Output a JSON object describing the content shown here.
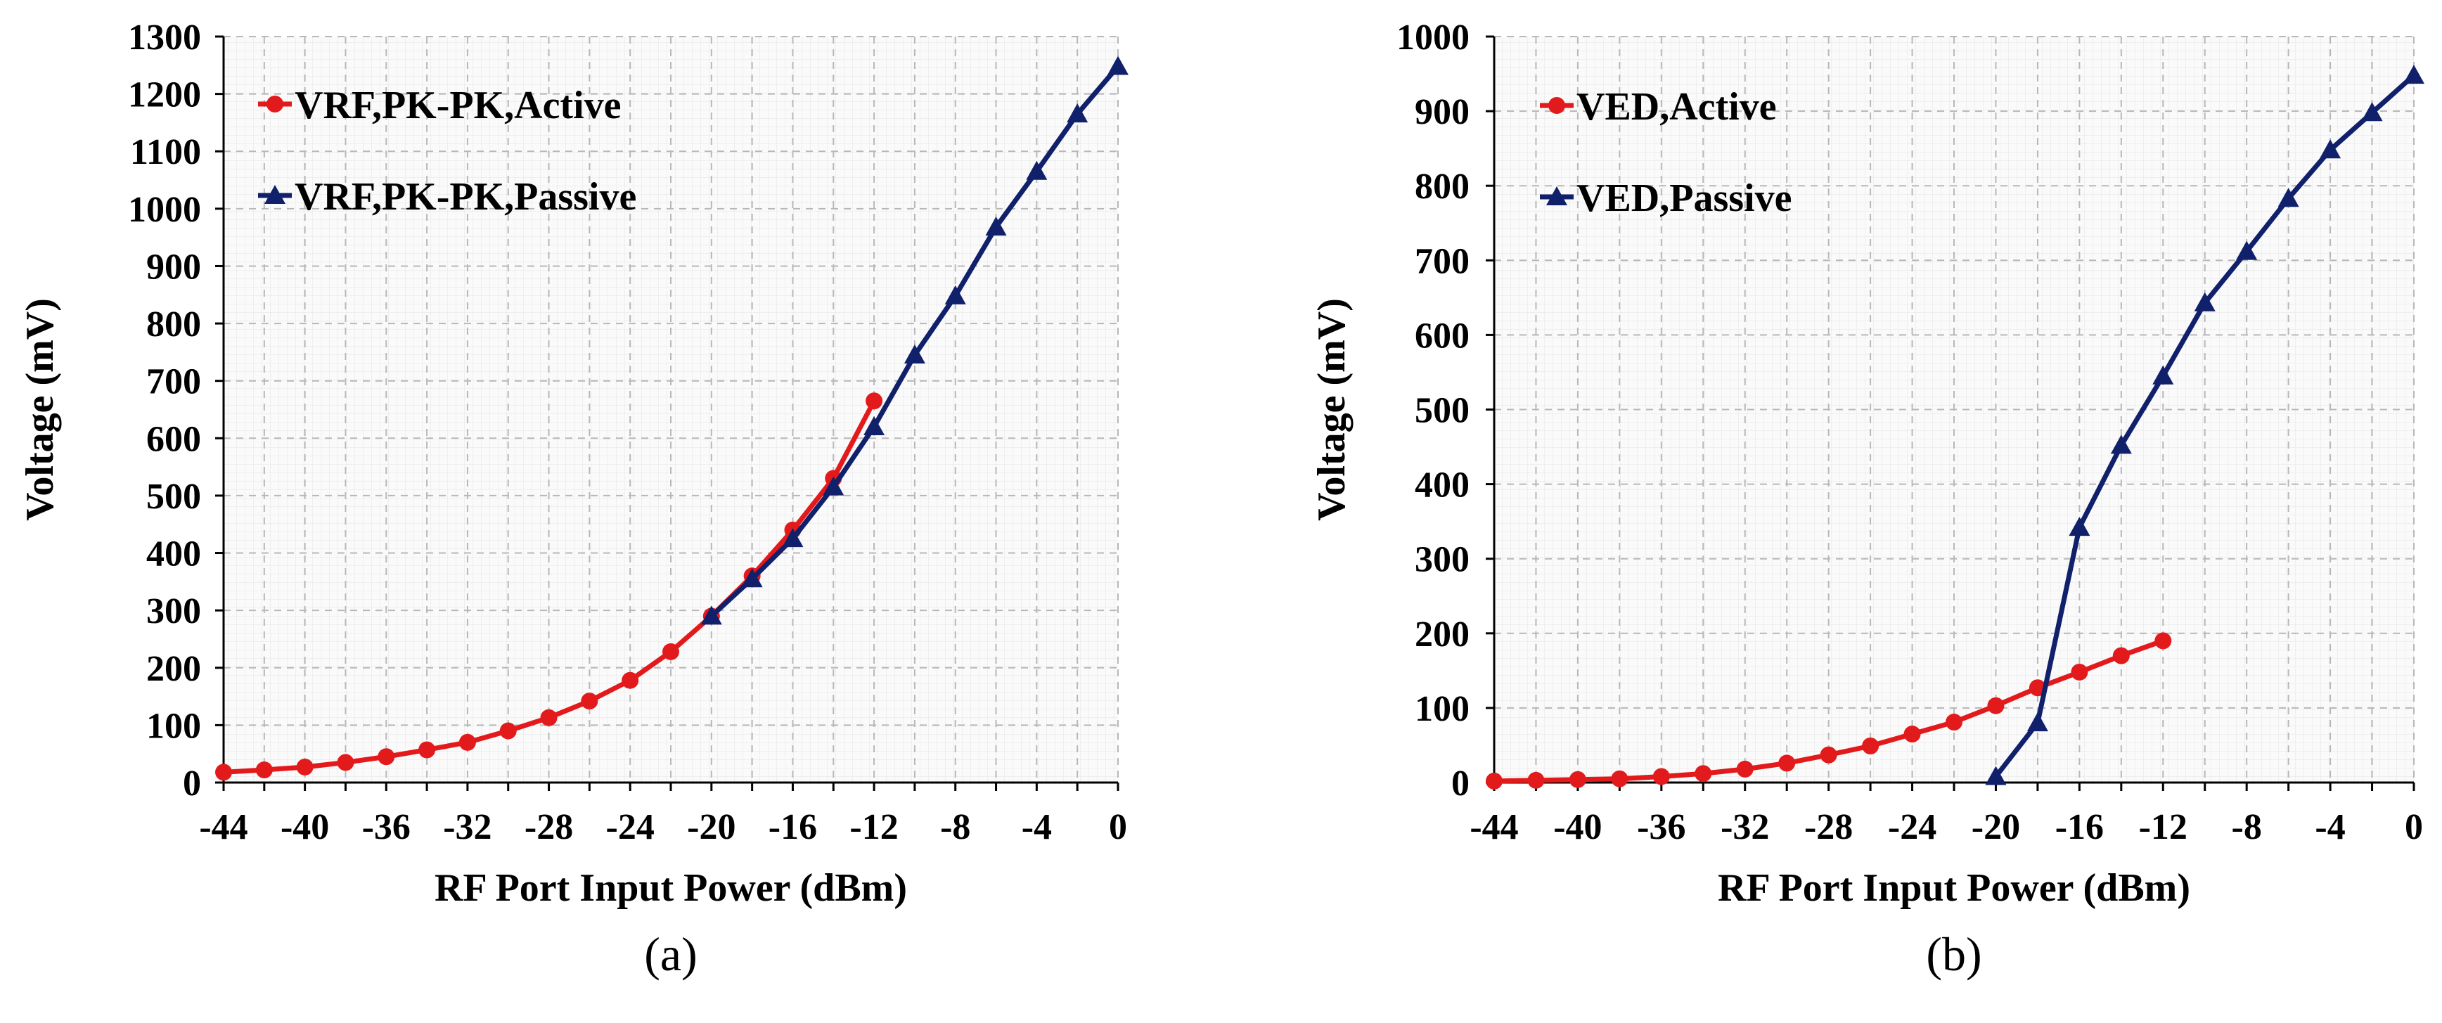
{
  "chart_data": [
    {
      "type": "line",
      "panel_label": "(a)",
      "xlabel": "RF Port Input Power (dBm)",
      "ylabel": "Voltage (mV)",
      "xlim": [
        -44,
        0
      ],
      "ylim": [
        0,
        1300
      ],
      "xticks": [
        -44,
        -40,
        -36,
        -32,
        -28,
        -24,
        -20,
        -16,
        -12,
        -8,
        -4,
        0
      ],
      "yticks": [
        0,
        100,
        200,
        300,
        400,
        500,
        600,
        700,
        800,
        900,
        1000,
        1100,
        1200,
        1300
      ],
      "grid": true,
      "legend_position": "top-left",
      "series": [
        {
          "name": "VRF,PK-PK,Active",
          "color": "#e31a1c",
          "marker": "circle",
          "x": [
            -44,
            -42,
            -40,
            -38,
            -36,
            -34,
            -32,
            -30,
            -28,
            -26,
            -24,
            -22,
            -20,
            -18,
            -16,
            -14,
            -12
          ],
          "values": [
            18,
            22,
            27,
            35,
            45,
            57,
            70,
            90,
            113,
            142,
            178,
            228,
            290,
            360,
            440,
            530,
            665
          ]
        },
        {
          "name": "VRF,PK-PK,Passive",
          "color": "#10206b",
          "marker": "triangle",
          "x": [
            -20,
            -18,
            -16,
            -14,
            -12,
            -10,
            -8,
            -6,
            -4,
            -2,
            0
          ],
          "values": [
            290,
            355,
            425,
            515,
            620,
            745,
            848,
            968,
            1065,
            1165,
            1248
          ]
        }
      ]
    },
    {
      "type": "line",
      "panel_label": "(b)",
      "xlabel": "RF Port Input Power (dBm)",
      "ylabel": "Voltage (mV)",
      "xlim": [
        -44,
        0
      ],
      "ylim": [
        0,
        1000
      ],
      "xticks": [
        -44,
        -40,
        -36,
        -32,
        -28,
        -24,
        -20,
        -16,
        -12,
        -8,
        -4,
        0
      ],
      "yticks": [
        0,
        100,
        200,
        300,
        400,
        500,
        600,
        700,
        800,
        900,
        1000
      ],
      "grid": true,
      "legend_position": "top-left",
      "series": [
        {
          "name": "VED,Active",
          "color": "#e31a1c",
          "marker": "circle",
          "x": [
            -44,
            -42,
            -40,
            -38,
            -36,
            -34,
            -32,
            -30,
            -28,
            -26,
            -24,
            -22,
            -20,
            -18,
            -16,
            -14,
            -12
          ],
          "values": [
            2,
            3,
            4,
            5,
            8,
            12,
            18,
            26,
            37,
            49,
            65,
            81,
            103,
            127,
            148,
            170,
            190
          ]
        },
        {
          "name": "VED,Passive",
          "color": "#10206b",
          "marker": "triangle",
          "x": [
            -20,
            -18,
            -16,
            -14,
            -12,
            -10,
            -8,
            -6,
            -4,
            -2,
            0
          ],
          "values": [
            8,
            80,
            342,
            452,
            545,
            643,
            712,
            783,
            848,
            898,
            948
          ]
        }
      ]
    }
  ]
}
